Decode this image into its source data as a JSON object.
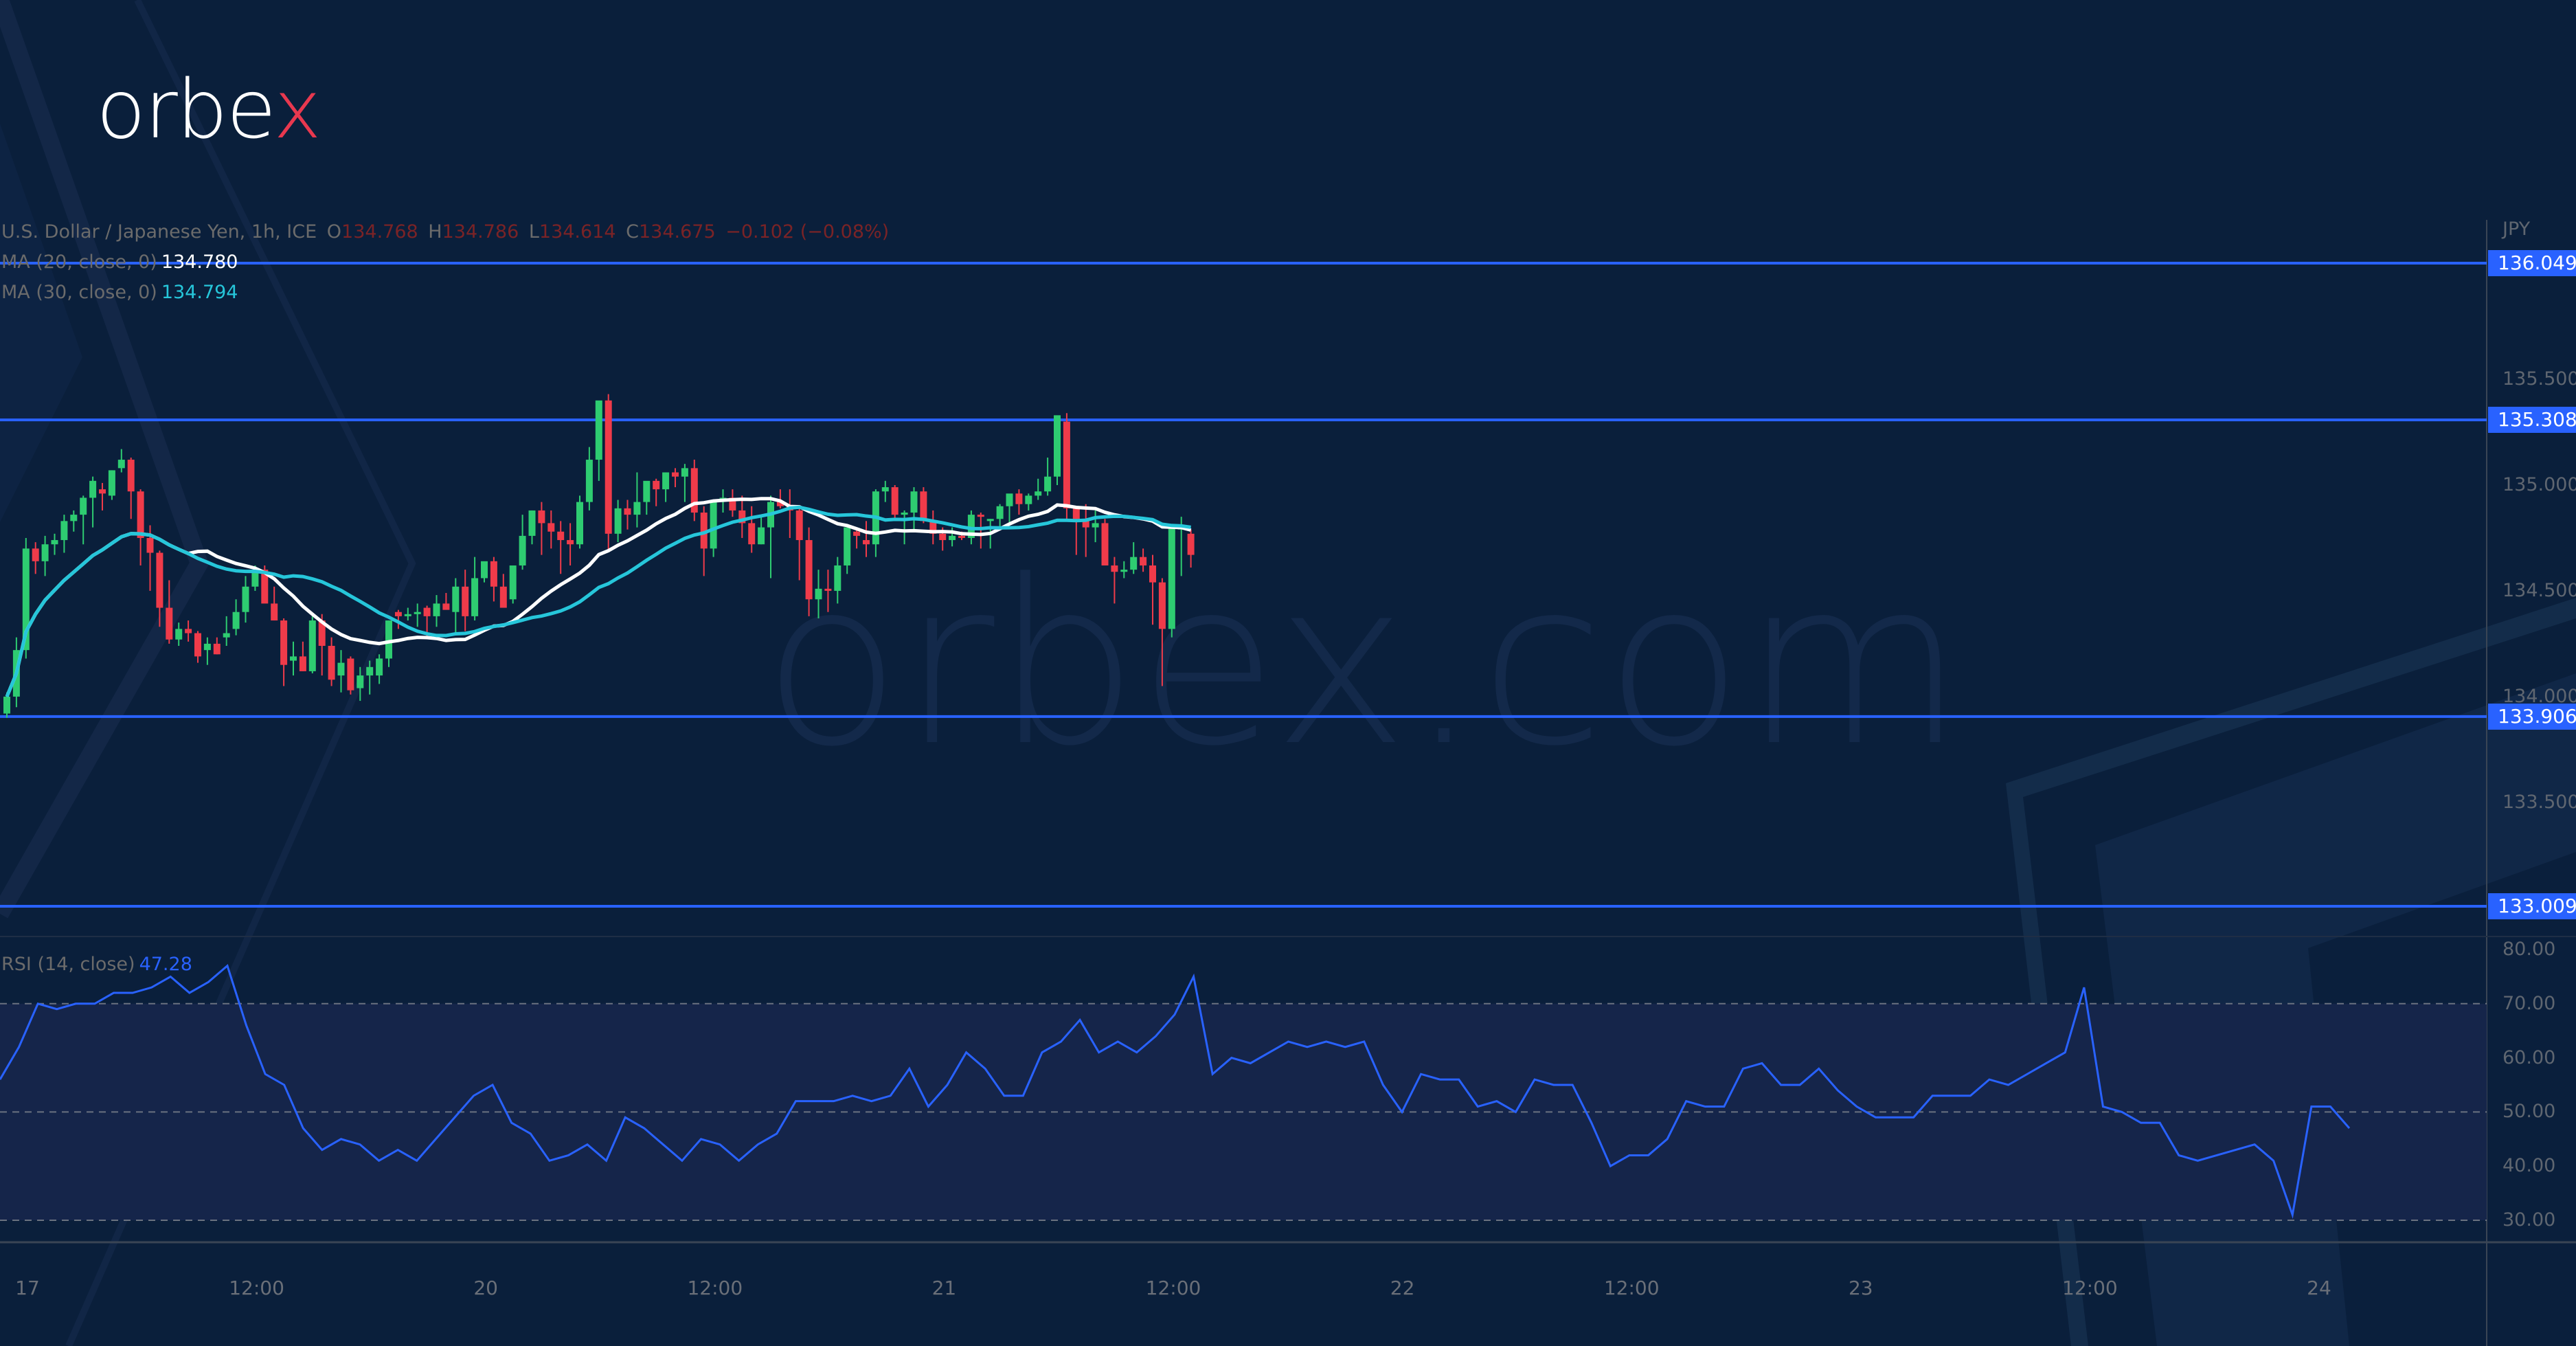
{
  "brand": {
    "logo_main": "orbe",
    "logo_x": "x",
    "watermark": "orbex.com",
    "accent": "#e8384f"
  },
  "legend": {
    "symbol": "U.S. Dollar / Japanese Yen, 1h, ICE",
    "o_label": "O",
    "o_value": "134.768",
    "h_label": "H",
    "h_value": "134.786",
    "l_label": "L",
    "l_value": "134.614",
    "c_label": "C",
    "c_value": "134.675",
    "change": "−0.102 (−0.08%)",
    "ma20_label": "MA (20, close, 0)",
    "ma20_value": "134.780",
    "ma30_label": "MA (30, close, 0)",
    "ma30_value": "134.794",
    "rsi_label": "RSI (14, close)",
    "rsi_value": "47.28"
  },
  "price_axis": {
    "currency": "JPY",
    "ticks": [
      "135.500",
      "135.000",
      "134.500",
      "134.000",
      "133.500"
    ],
    "levels": [
      "136.049",
      "135.308",
      "133.906",
      "133.009"
    ]
  },
  "rsi_axis": {
    "ticks": [
      "80.00",
      "70.00",
      "60.00",
      "50.00",
      "40.00",
      "30.00"
    ]
  },
  "time_axis": {
    "labels": [
      "17",
      "12:00",
      "20",
      "12:00",
      "21",
      "12:00",
      "22",
      "12:00",
      "23",
      "12:00",
      "24"
    ]
  },
  "colors": {
    "background": "#0a1f3b",
    "up": "#2ecc71",
    "down": "#ef3b4a",
    "ma20": "#ffffff",
    "ma30": "#26c6da",
    "level_line": "#2962ff",
    "rsi_line": "#2962ff",
    "rsi_band": "#15254a"
  },
  "chart_data": [
    {
      "type": "candlestick",
      "title": "U.S. Dollar / Japanese Yen, 1h, ICE",
      "ylabel": "JPY",
      "ylim": [
        132.85,
        136.3
      ],
      "x_ticks": [
        "17",
        "12:00",
        "20",
        "12:00",
        "21",
        "12:00",
        "22",
        "12:00",
        "23",
        "12:00",
        "24"
      ],
      "horizontal_levels": [
        136.049,
        135.308,
        133.906,
        133.009
      ],
      "last": {
        "open": 134.768,
        "high": 134.786,
        "low": 134.614,
        "close": 134.675,
        "change": -0.102,
        "change_pct": -0.08
      },
      "series": [
        {
          "name": "candles",
          "ohlc": [
            [
              133.92,
              134.02,
              133.9,
              134.0
            ],
            [
              134.0,
              134.28,
              133.95,
              134.22
            ],
            [
              134.22,
              134.75,
              134.18,
              134.7
            ],
            [
              134.7,
              134.73,
              134.58,
              134.64
            ],
            [
              134.64,
              134.76,
              134.57,
              134.72
            ],
            [
              134.72,
              134.77,
              134.67,
              134.74
            ],
            [
              134.74,
              134.86,
              134.68,
              134.83
            ],
            [
              134.83,
              134.88,
              134.78,
              134.86
            ],
            [
              134.86,
              134.95,
              134.72,
              134.94
            ],
            [
              134.94,
              135.04,
              134.8,
              135.02
            ],
            [
              134.98,
              135.01,
              134.88,
              134.96
            ],
            [
              134.95,
              135.07,
              134.93,
              135.07
            ],
            [
              135.08,
              135.17,
              135.06,
              135.12
            ],
            [
              135.12,
              135.13,
              134.84,
              134.97
            ],
            [
              134.97,
              134.98,
              134.62,
              134.75
            ],
            [
              134.75,
              134.81,
              134.5,
              134.68
            ],
            [
              134.68,
              134.69,
              134.33,
              134.42
            ],
            [
              134.42,
              134.55,
              134.25,
              134.27
            ],
            [
              134.27,
              134.35,
              134.24,
              134.32
            ],
            [
              134.32,
              134.36,
              134.26,
              134.3
            ],
            [
              134.3,
              134.31,
              134.16,
              134.19
            ],
            [
              134.22,
              134.28,
              134.15,
              134.25
            ],
            [
              134.25,
              134.28,
              134.2,
              134.2
            ],
            [
              134.28,
              134.38,
              134.24,
              134.3
            ],
            [
              134.32,
              134.46,
              134.29,
              134.4
            ],
            [
              134.4,
              134.57,
              134.35,
              134.52
            ],
            [
              134.52,
              134.62,
              134.5,
              134.6
            ],
            [
              134.6,
              134.62,
              134.45,
              134.44
            ],
            [
              134.44,
              134.52,
              134.36,
              134.36
            ],
            [
              134.36,
              134.37,
              134.05,
              134.15
            ],
            [
              134.17,
              134.26,
              134.1,
              134.19
            ],
            [
              134.19,
              134.26,
              134.12,
              134.12
            ],
            [
              134.12,
              134.38,
              134.11,
              134.36
            ],
            [
              134.36,
              134.39,
              134.1,
              134.24
            ],
            [
              134.24,
              134.28,
              134.05,
              134.08
            ],
            [
              134.1,
              134.22,
              134.02,
              134.16
            ],
            [
              134.18,
              134.19,
              134.01,
              134.03
            ],
            [
              134.04,
              134.14,
              133.98,
              134.1
            ],
            [
              134.1,
              134.17,
              134.01,
              134.14
            ],
            [
              134.1,
              134.2,
              134.06,
              134.18
            ],
            [
              134.18,
              134.36,
              134.14,
              134.36
            ],
            [
              134.4,
              134.41,
              134.32,
              134.38
            ],
            [
              134.38,
              134.42,
              134.36,
              134.39
            ],
            [
              134.39,
              134.44,
              134.33,
              134.4
            ],
            [
              134.42,
              134.43,
              134.28,
              134.38
            ],
            [
              134.38,
              134.48,
              134.33,
              134.44
            ],
            [
              134.44,
              134.49,
              134.42,
              134.41
            ],
            [
              134.4,
              134.56,
              134.29,
              134.52
            ],
            [
              134.52,
              134.6,
              134.31,
              134.38
            ],
            [
              134.38,
              134.66,
              134.36,
              134.56
            ],
            [
              134.56,
              134.63,
              134.54,
              134.64
            ],
            [
              134.64,
              134.66,
              134.45,
              134.52
            ],
            [
              134.52,
              134.58,
              134.45,
              134.42
            ],
            [
              134.46,
              134.6,
              134.44,
              134.62
            ],
            [
              134.62,
              134.86,
              134.6,
              134.76
            ],
            [
              134.76,
              134.88,
              134.72,
              134.88
            ],
            [
              134.88,
              134.92,
              134.67,
              134.82
            ],
            [
              134.82,
              134.88,
              134.7,
              134.78
            ],
            [
              134.78,
              134.83,
              134.58,
              134.74
            ],
            [
              134.74,
              134.82,
              134.62,
              134.72
            ],
            [
              134.72,
              134.95,
              134.7,
              134.92
            ],
            [
              134.92,
              135.18,
              134.88,
              135.12
            ],
            [
              135.12,
              135.25,
              135.02,
              135.4
            ],
            [
              135.4,
              135.43,
              134.69,
              134.77
            ],
            [
              134.77,
              134.93,
              134.73,
              134.89
            ],
            [
              134.89,
              134.93,
              134.79,
              134.86
            ],
            [
              134.86,
              135.06,
              134.8,
              134.92
            ],
            [
              134.92,
              135.0,
              134.86,
              135.02
            ],
            [
              135.02,
              135.03,
              134.9,
              134.98
            ],
            [
              134.98,
              135.06,
              134.92,
              135.06
            ],
            [
              135.06,
              135.08,
              134.99,
              135.04
            ],
            [
              135.04,
              135.1,
              134.92,
              135.08
            ],
            [
              135.08,
              135.12,
              134.83,
              134.87
            ],
            [
              134.87,
              134.9,
              134.57,
              134.7
            ],
            [
              134.7,
              134.92,
              134.66,
              134.93
            ],
            [
              134.93,
              134.98,
              134.87,
              134.94
            ],
            [
              134.94,
              134.98,
              134.85,
              134.88
            ],
            [
              134.88,
              134.95,
              134.75,
              134.82
            ],
            [
              134.82,
              134.9,
              134.68,
              134.72
            ],
            [
              134.72,
              134.85,
              134.72,
              134.8
            ],
            [
              134.8,
              134.95,
              134.56,
              134.92
            ],
            [
              134.92,
              134.98,
              134.89,
              134.9
            ],
            [
              134.9,
              134.98,
              134.75,
              134.88
            ],
            [
              134.88,
              134.9,
              134.55,
              134.74
            ],
            [
              134.74,
              134.8,
              134.38,
              134.46
            ],
            [
              134.46,
              134.6,
              134.37,
              134.51
            ],
            [
              134.51,
              134.6,
              134.4,
              134.5
            ],
            [
              134.5,
              134.66,
              134.44,
              134.62
            ],
            [
              134.62,
              134.78,
              134.58,
              134.8
            ],
            [
              134.78,
              134.8,
              134.7,
              134.76
            ],
            [
              134.74,
              134.83,
              134.66,
              134.72
            ],
            [
              134.72,
              134.98,
              134.66,
              134.97
            ],
            [
              134.97,
              135.02,
              134.92,
              134.99
            ],
            [
              134.99,
              135.0,
              134.83,
              134.86
            ],
            [
              134.86,
              134.88,
              134.72,
              134.87
            ],
            [
              134.87,
              134.99,
              134.78,
              134.97
            ],
            [
              134.97,
              134.99,
              134.82,
              134.83
            ],
            [
              134.83,
              134.88,
              134.72,
              134.77
            ],
            [
              134.77,
              134.8,
              134.69,
              134.74
            ],
            [
              134.74,
              134.8,
              134.71,
              134.76
            ],
            [
              134.76,
              134.78,
              134.74,
              134.75
            ],
            [
              134.75,
              134.88,
              134.72,
              134.86
            ],
            [
              134.86,
              134.87,
              134.7,
              134.85
            ],
            [
              134.83,
              134.84,
              134.7,
              134.84
            ],
            [
              134.84,
              134.91,
              134.79,
              134.9
            ],
            [
              134.9,
              134.95,
              134.81,
              134.96
            ],
            [
              134.96,
              134.98,
              134.86,
              134.91
            ],
            [
              134.91,
              134.96,
              134.88,
              134.95
            ],
            [
              134.95,
              135.03,
              134.93,
              134.97
            ],
            [
              134.97,
              135.13,
              134.95,
              135.04
            ],
            [
              135.04,
              135.32,
              135.0,
              135.33
            ],
            [
              135.3,
              135.34,
              134.83,
              134.89
            ],
            [
              134.89,
              134.9,
              134.67,
              134.84
            ],
            [
              134.84,
              134.91,
              134.66,
              134.8
            ],
            [
              134.8,
              134.88,
              134.73,
              134.82
            ],
            [
              134.82,
              134.84,
              134.62,
              134.62
            ],
            [
              134.62,
              134.66,
              134.44,
              134.59
            ],
            [
              134.59,
              134.64,
              134.56,
              134.6
            ],
            [
              134.6,
              134.73,
              134.58,
              134.66
            ],
            [
              134.66,
              134.7,
              134.59,
              134.62
            ],
            [
              134.62,
              134.67,
              134.34,
              134.54
            ],
            [
              134.54,
              134.56,
              134.05,
              134.32
            ],
            [
              134.32,
              134.79,
              134.28,
              134.81
            ],
            [
              134.79,
              134.85,
              134.57,
              134.81
            ],
            [
              134.77,
              134.79,
              134.61,
              134.67
            ]
          ]
        },
        {
          "name": "MA (20, close, 0)",
          "color": "#ffffff",
          "last": 134.78
        },
        {
          "name": "MA (30, close, 0)",
          "color": "#26c6da",
          "last": 134.794
        }
      ]
    },
    {
      "type": "line",
      "title": "RSI (14, close)",
      "ylim": [
        25,
        82
      ],
      "y_ticks": [
        80,
        70,
        60,
        50,
        40,
        30
      ],
      "bands": [
        70,
        50,
        30
      ],
      "last": 47.28,
      "series": [
        {
          "name": "RSI",
          "color": "#2962ff",
          "values": [
            56,
            62,
            70,
            69,
            70,
            70,
            72,
            72,
            73,
            75,
            72,
            74,
            77,
            66,
            57,
            55,
            47,
            43,
            45,
            44,
            41,
            43,
            41,
            45,
            49,
            53,
            55,
            48,
            46,
            41,
            42,
            44,
            41,
            49,
            47,
            44,
            41,
            45,
            44,
            41,
            44,
            46,
            52,
            52,
            52,
            53,
            52,
            53,
            58,
            51,
            55,
            61,
            58,
            53,
            53,
            61,
            63,
            67,
            61,
            63,
            61,
            64,
            68,
            75,
            57,
            60,
            59,
            61,
            63,
            62,
            63,
            62,
            63,
            55,
            50,
            57,
            56,
            56,
            51,
            52,
            50,
            56,
            55,
            55,
            48,
            40,
            42,
            42,
            45,
            52,
            51,
            51,
            58,
            59,
            55,
            55,
            58,
            54,
            51,
            49,
            49,
            49,
            53,
            53,
            53,
            56,
            55,
            57,
            59,
            61,
            73,
            51,
            50,
            48,
            48,
            42,
            41,
            42,
            43,
            44,
            41,
            31,
            51,
            51,
            47
          ]
        }
      ]
    }
  ]
}
